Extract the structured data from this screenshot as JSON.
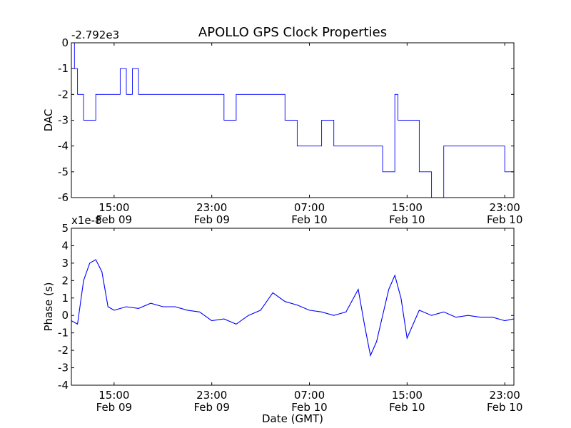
{
  "figure_title": "APOLLO GPS Clock Properties",
  "colors": {
    "line": "#0000ff",
    "axes": "#000000",
    "background": "#ffffff"
  },
  "chart_data": [
    {
      "type": "line",
      "title": "APOLLO GPS Clock Properties",
      "ylabel": "DAC",
      "xlabel": "",
      "offset_text": "-2.792e3",
      "xlim": [
        "2013-02-09T11:30",
        "2013-02-10T23:45"
      ],
      "ylim": [
        -6,
        0
      ],
      "yticks": [
        0,
        -1,
        -2,
        -3,
        -4,
        -5,
        -6
      ],
      "ytick_labels": [
        "0",
        "-1",
        "-2",
        "-3",
        "-4",
        "-5",
        "-6"
      ],
      "xticks": [
        "2013-02-09T15:00",
        "2013-02-09T23:00",
        "2013-02-10T07:00",
        "2013-02-10T15:00",
        "2013-02-10T23:00"
      ],
      "xtick_labels": [
        [
          "15:00",
          "Feb 09"
        ],
        [
          "23:00",
          "Feb 09"
        ],
        [
          "07:00",
          "Feb 10"
        ],
        [
          "15:00",
          "Feb 10"
        ],
        [
          "23:00",
          "Feb 10"
        ]
      ],
      "grid": false,
      "series": [
        {
          "x": [
            "2013-02-09T11:30",
            "2013-02-09T11:45",
            "2013-02-09T12:00",
            "2013-02-09T12:15",
            "2013-02-09T12:30",
            "2013-02-09T13:00",
            "2013-02-09T13:30",
            "2013-02-09T14:00",
            "2013-02-09T14:30",
            "2013-02-09T15:00",
            "2013-02-09T15:30",
            "2013-02-09T16:00",
            "2013-02-09T16:30",
            "2013-02-09T17:00",
            "2013-02-09T18:00",
            "2013-02-09T19:00",
            "2013-02-09T20:00",
            "2013-02-09T21:00",
            "2013-02-09T22:00",
            "2013-02-09T23:00",
            "2013-02-10T00:00",
            "2013-02-10T01:00",
            "2013-02-10T02:00",
            "2013-02-10T03:00",
            "2013-02-10T04:00",
            "2013-02-10T05:00",
            "2013-02-10T06:00",
            "2013-02-10T07:00",
            "2013-02-10T08:00",
            "2013-02-10T09:00",
            "2013-02-10T10:00",
            "2013-02-10T11:00",
            "2013-02-10T12:00",
            "2013-02-10T13:00",
            "2013-02-10T14:00",
            "2013-02-10T14:15",
            "2013-02-10T15:00",
            "2013-02-10T16:00",
            "2013-02-10T17:00",
            "2013-02-10T18:00",
            "2013-02-10T19:00",
            "2013-02-10T20:00",
            "2013-02-10T21:00",
            "2013-02-10T22:00",
            "2013-02-10T23:00",
            "2013-02-10T23:45"
          ],
          "y": [
            0,
            -1,
            -2,
            -2,
            -3,
            -3,
            -2,
            -2,
            -2,
            -2,
            -1,
            -2,
            -1,
            -2,
            -2,
            -2,
            -2,
            -2,
            -2,
            -2,
            -3,
            -2,
            -2,
            -2,
            -2,
            -3,
            -4,
            -4,
            -3,
            -4,
            -4,
            -4,
            -4,
            -5,
            -2,
            -3,
            -3,
            -5,
            -6,
            -4,
            -4,
            -4,
            -4,
            -4,
            -5,
            -5
          ]
        }
      ]
    },
    {
      "type": "line",
      "title": "",
      "ylabel": "Phase (s)",
      "xlabel": "Date (GMT)",
      "offset_text": "x1e-8",
      "xlim": [
        "2013-02-09T11:30",
        "2013-02-10T23:45"
      ],
      "ylim": [
        -4,
        5
      ],
      "yticks": [
        5,
        4,
        3,
        2,
        1,
        0,
        -1,
        -2,
        -3,
        -4
      ],
      "ytick_labels": [
        "5",
        "4",
        "3",
        "2",
        "1",
        "0",
        "-1",
        "-2",
        "-3",
        "-4"
      ],
      "xticks": [
        "2013-02-09T15:00",
        "2013-02-09T23:00",
        "2013-02-10T07:00",
        "2013-02-10T15:00",
        "2013-02-10T23:00"
      ],
      "xtick_labels": [
        [
          "15:00",
          "Feb 09"
        ],
        [
          "23:00",
          "Feb 09"
        ],
        [
          "07:00",
          "Feb 10"
        ],
        [
          "15:00",
          "Feb 10"
        ],
        [
          "23:00",
          "Feb 10"
        ]
      ],
      "grid": false,
      "series": [
        {
          "x": [
            "2013-02-09T11:30",
            "2013-02-09T12:00",
            "2013-02-09T12:30",
            "2013-02-09T13:00",
            "2013-02-09T13:30",
            "2013-02-09T14:00",
            "2013-02-09T14:30",
            "2013-02-09T15:00",
            "2013-02-09T16:00",
            "2013-02-09T17:00",
            "2013-02-09T18:00",
            "2013-02-09T19:00",
            "2013-02-09T20:00",
            "2013-02-09T21:00",
            "2013-02-09T22:00",
            "2013-02-09T23:00",
            "2013-02-10T00:00",
            "2013-02-10T01:00",
            "2013-02-10T02:00",
            "2013-02-10T03:00",
            "2013-02-10T04:00",
            "2013-02-10T05:00",
            "2013-02-10T06:00",
            "2013-02-10T07:00",
            "2013-02-10T08:00",
            "2013-02-10T09:00",
            "2013-02-10T10:00",
            "2013-02-10T11:00",
            "2013-02-10T11:30",
            "2013-02-10T12:00",
            "2013-02-10T12:30",
            "2013-02-10T13:00",
            "2013-02-10T13:30",
            "2013-02-10T14:00",
            "2013-02-10T14:30",
            "2013-02-10T15:00",
            "2013-02-10T16:00",
            "2013-02-10T17:00",
            "2013-02-10T18:00",
            "2013-02-10T19:00",
            "2013-02-10T20:00",
            "2013-02-10T21:00",
            "2013-02-10T22:00",
            "2013-02-10T23:00",
            "2013-02-10T23:45"
          ],
          "y": [
            -0.3,
            -0.5,
            2.0,
            3.0,
            3.2,
            2.5,
            0.5,
            0.3,
            0.5,
            0.4,
            0.7,
            0.5,
            0.5,
            0.3,
            0.2,
            -0.3,
            -0.2,
            -0.5,
            0.0,
            0.3,
            1.3,
            0.8,
            0.6,
            0.3,
            0.2,
            0.0,
            0.2,
            1.5,
            -0.5,
            -2.3,
            -1.5,
            0.0,
            1.5,
            2.3,
            1.0,
            -1.3,
            0.3,
            0.0,
            0.2,
            -0.1,
            0.0,
            -0.1,
            -0.1,
            -0.3,
            -0.2
          ]
        }
      ]
    }
  ]
}
